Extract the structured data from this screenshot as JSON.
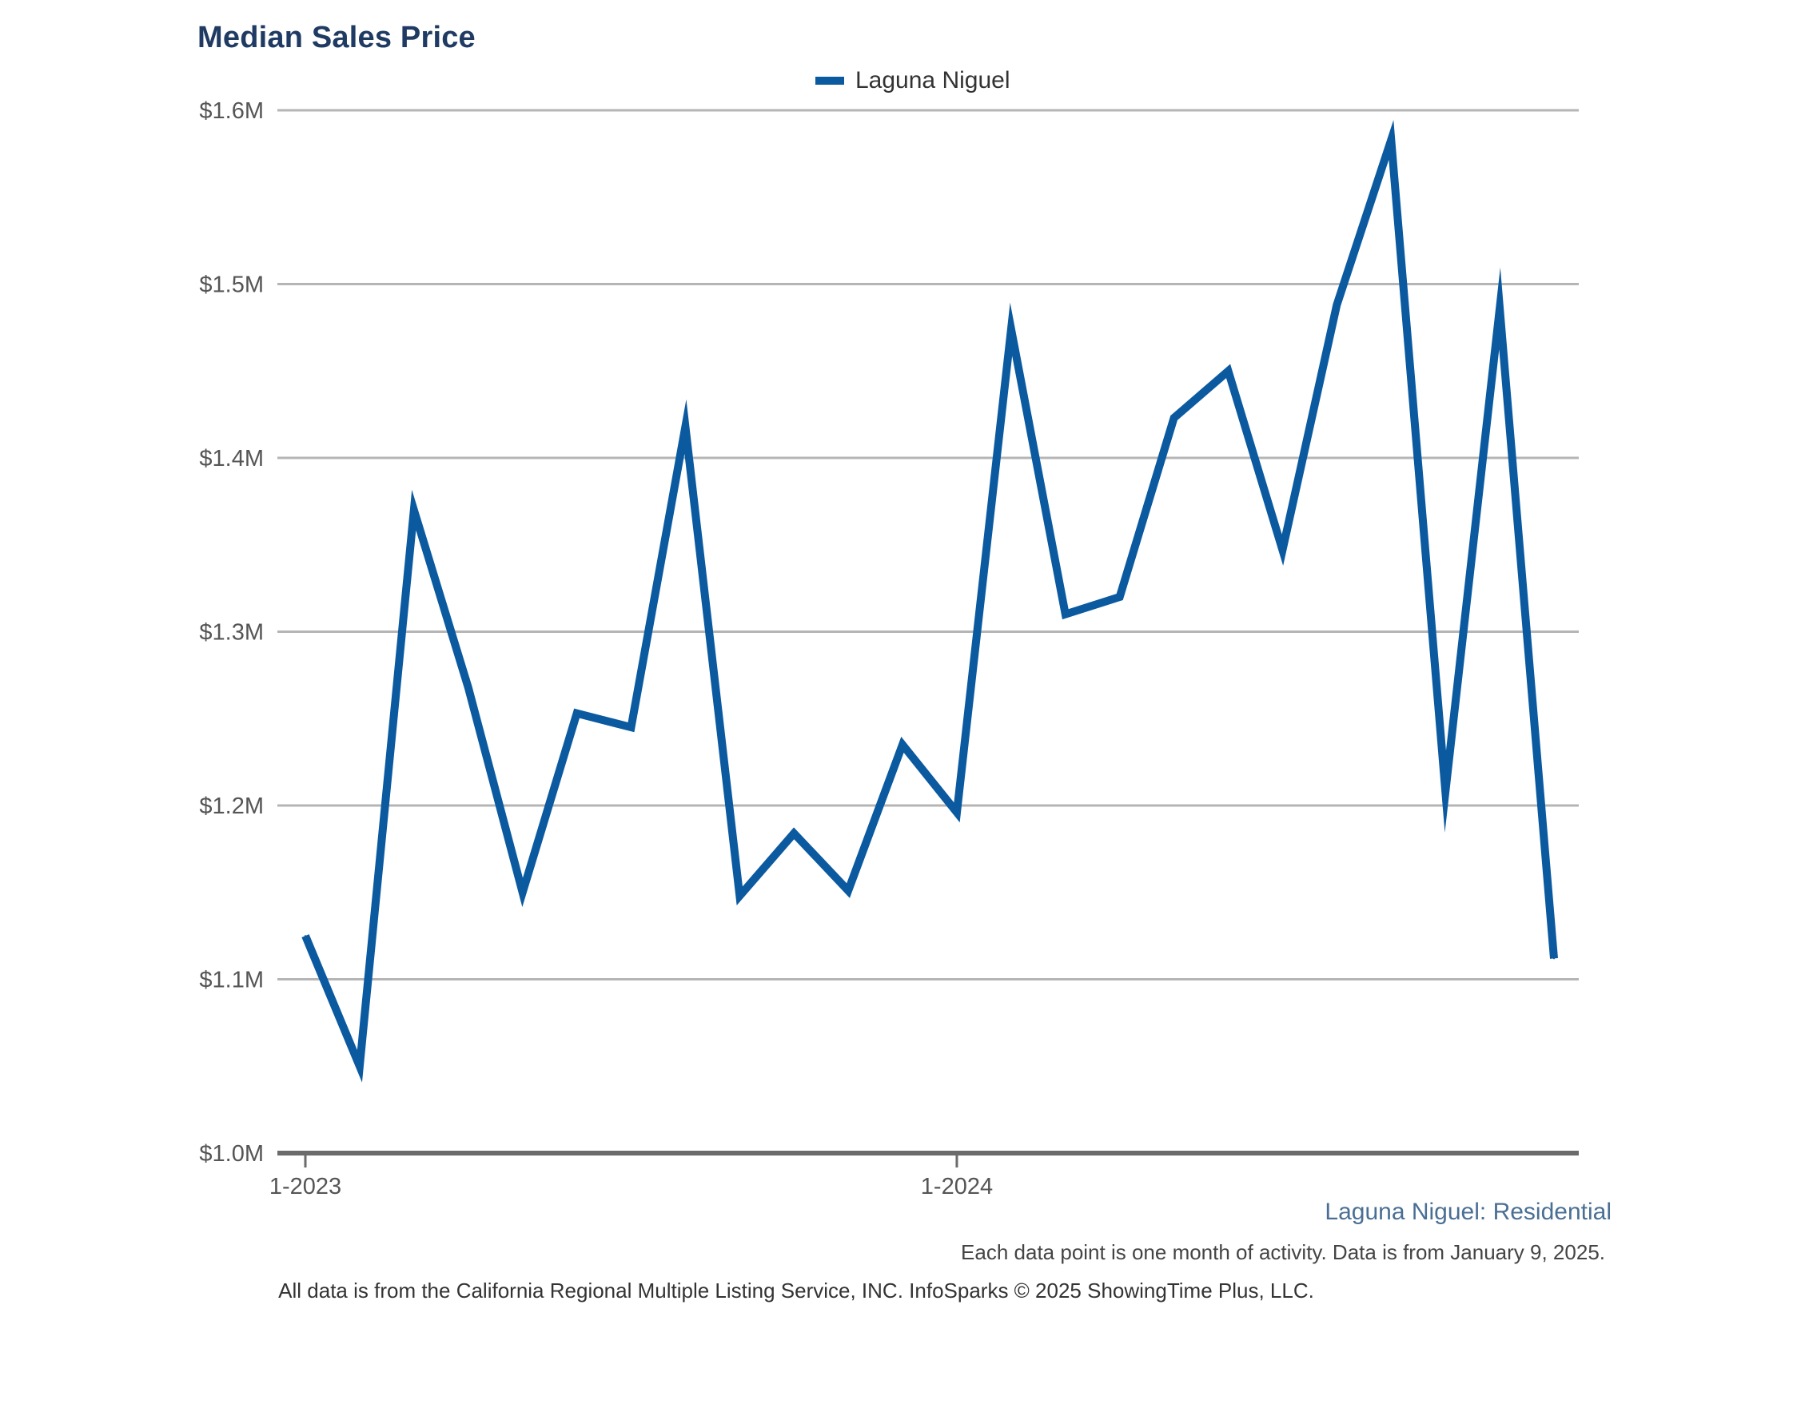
{
  "colors": {
    "series": "#0b5aa0",
    "grid": "#b5b5b5",
    "axis": "#6b6b6b",
    "title": "#1f3b63"
  },
  "chart_data": {
    "type": "line",
    "title": "Median Sales Price",
    "xlabel": "",
    "ylabel": "",
    "ylim": [
      1000000,
      1600000
    ],
    "yticks": [
      {
        "value": 1000000,
        "label": "$1.0M"
      },
      {
        "value": 1100000,
        "label": "$1.1M"
      },
      {
        "value": 1200000,
        "label": "$1.2M"
      },
      {
        "value": 1300000,
        "label": "$1.3M"
      },
      {
        "value": 1400000,
        "label": "$1.4M"
      },
      {
        "value": 1500000,
        "label": "$1.5M"
      },
      {
        "value": 1600000,
        "label": "$1.6M"
      }
    ],
    "xticks": [
      {
        "value": "2023-01",
        "label": "1-2023"
      },
      {
        "value": "2024-01",
        "label": "1-2024"
      }
    ],
    "x": [
      "2023-01",
      "2023-02",
      "2023-03",
      "2023-04",
      "2023-05",
      "2023-06",
      "2023-07",
      "2023-08",
      "2023-09",
      "2023-10",
      "2023-11",
      "2023-12",
      "2024-01",
      "2024-02",
      "2024-03",
      "2024-04",
      "2024-05",
      "2024-06",
      "2024-07",
      "2024-08",
      "2024-09",
      "2024-10",
      "2024-11",
      "2024-12"
    ],
    "series": [
      {
        "name": "Laguna Niguel",
        "values": [
          1125000,
          1050000,
          1370000,
          1268000,
          1150000,
          1253000,
          1245000,
          1418000,
          1148000,
          1184000,
          1151000,
          1235000,
          1196000,
          1474000,
          1310000,
          1320000,
          1423000,
          1450000,
          1347000,
          1488000,
          1583000,
          1208000,
          1486000,
          1112000
        ]
      }
    ],
    "grid": true,
    "legend": "top-center"
  },
  "footer": {
    "subtitle": "Laguna Niguel: Residential",
    "note": "Each data point is one month of activity. Data is from January 9, 2025.",
    "source": "All data is from the California Regional Multiple Listing Service, INC. InfoSparks © 2025 ShowingTime Plus, LLC."
  }
}
